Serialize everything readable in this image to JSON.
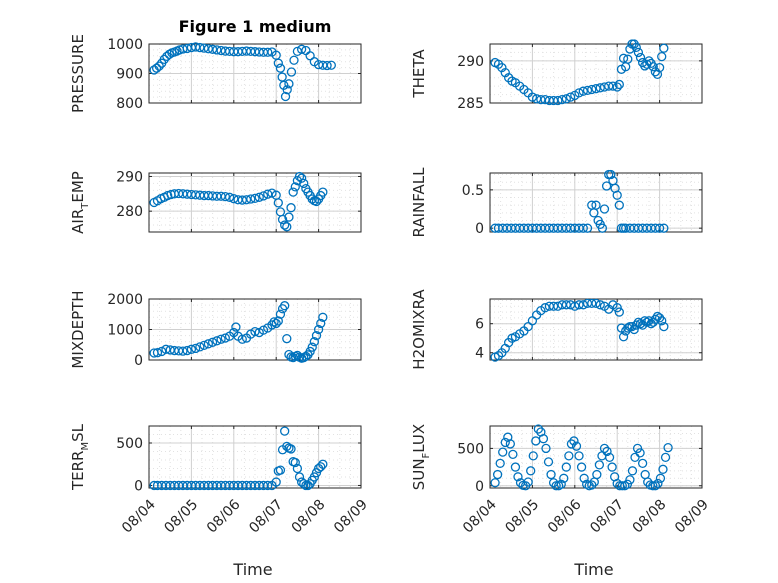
{
  "figure": {
    "title": "Figure 1 medium"
  },
  "colors": {
    "marker": "#0072BD",
    "axis": "#262626",
    "grid": "#d0d0d0",
    "minor_grid": "#e2e2e2"
  },
  "x_ticks": [
    "08/04",
    "08/05",
    "08/06",
    "08/07",
    "08/08",
    "08/09"
  ],
  "x_label": "Time",
  "chart_data": [
    {
      "type": "scatter",
      "title": "Figure 1 medium",
      "ylabel_main": "PRESSURE",
      "ylabel_sub": "",
      "ylabel_rest": "",
      "ylim": [
        800,
        1000
      ],
      "yticks": [
        800,
        900,
        1000
      ],
      "ytick_labels": [
        "800",
        "900",
        "1000"
      ],
      "xlim": [
        0,
        5
      ],
      "grid": true,
      "x": [
        0.12,
        0.18,
        0.24,
        0.3,
        0.36,
        0.42,
        0.48,
        0.54,
        0.6,
        0.66,
        0.72,
        0.8,
        0.9,
        1.0,
        1.1,
        1.2,
        1.3,
        1.4,
        1.5,
        1.6,
        1.7,
        1.8,
        1.9,
        2.0,
        2.1,
        2.2,
        2.3,
        2.4,
        2.5,
        2.6,
        2.7,
        2.8,
        2.9,
        3.0,
        3.05,
        3.1,
        3.14,
        3.18,
        3.22,
        3.26,
        3.3,
        3.36,
        3.42,
        3.5,
        3.6,
        3.7,
        3.8,
        3.9,
        4.0,
        4.1,
        4.2,
        4.3
      ],
      "y": [
        912,
        918,
        925,
        935,
        948,
        958,
        965,
        970,
        973,
        976,
        980,
        983,
        985,
        988,
        990,
        988,
        986,
        984,
        982,
        980,
        978,
        976,
        975,
        974,
        974,
        975,
        976,
        975,
        974,
        973,
        972,
        972,
        973,
        962,
        935,
        918,
        888,
        860,
        822,
        845,
        865,
        905,
        945,
        975,
        982,
        978,
        960,
        940,
        930,
        928,
        927,
        928
      ]
    },
    {
      "type": "scatter",
      "title": "",
      "ylabel_main": "THETA",
      "ylabel_sub": "",
      "ylabel_rest": "",
      "ylim": [
        285,
        292
      ],
      "yticks": [
        285,
        290
      ],
      "ytick_labels": [
        "285",
        "290"
      ],
      "xlim": [
        0,
        5
      ],
      "grid": true,
      "x": [
        0.12,
        0.2,
        0.28,
        0.36,
        0.44,
        0.52,
        0.6,
        0.7,
        0.8,
        0.9,
        1.0,
        1.1,
        1.2,
        1.3,
        1.4,
        1.5,
        1.6,
        1.7,
        1.8,
        1.9,
        2.0,
        2.1,
        2.2,
        2.3,
        2.4,
        2.5,
        2.6,
        2.7,
        2.8,
        2.9,
        3.0,
        3.05,
        3.1,
        3.15,
        3.2,
        3.25,
        3.3,
        3.35,
        3.4,
        3.45,
        3.5,
        3.55,
        3.6,
        3.65,
        3.7,
        3.75,
        3.8,
        3.85,
        3.9,
        3.95,
        4.0,
        4.05,
        4.1
      ],
      "y": [
        289.8,
        289.6,
        289.2,
        288.6,
        288.0,
        287.6,
        287.4,
        287.0,
        286.6,
        286.2,
        285.7,
        285.5,
        285.4,
        285.4,
        285.3,
        285.3,
        285.3,
        285.4,
        285.5,
        285.7,
        285.9,
        286.2,
        286.4,
        286.5,
        286.6,
        286.7,
        286.8,
        286.9,
        287.0,
        287.0,
        286.9,
        287.2,
        289.0,
        290.3,
        289.3,
        290.2,
        291.4,
        292.0,
        292.0,
        291.6,
        291.0,
        290.4,
        289.8,
        289.4,
        289.6,
        290.0,
        289.7,
        289.3,
        288.7,
        288.4,
        289.2,
        290.5,
        291.5
      ]
    },
    {
      "type": "scatter",
      "title": "",
      "ylabel_main": "AIR",
      "ylabel_sub": "T",
      "ylabel_rest": "EMP",
      "ylim": [
        274,
        291
      ],
      "yticks": [
        280,
        290
      ],
      "ytick_labels": [
        "280",
        "290"
      ],
      "xlim": [
        0,
        5
      ],
      "grid": true,
      "x": [
        0.12,
        0.2,
        0.28,
        0.36,
        0.44,
        0.52,
        0.6,
        0.7,
        0.8,
        0.9,
        1.0,
        1.1,
        1.2,
        1.3,
        1.4,
        1.5,
        1.6,
        1.7,
        1.8,
        1.9,
        2.0,
        2.1,
        2.2,
        2.3,
        2.4,
        2.5,
        2.6,
        2.7,
        2.8,
        2.9,
        3.0,
        3.05,
        3.1,
        3.15,
        3.2,
        3.25,
        3.3,
        3.35,
        3.4,
        3.45,
        3.5,
        3.55,
        3.6,
        3.65,
        3.7,
        3.75,
        3.8,
        3.85,
        3.9,
        3.95,
        4.0,
        4.05,
        4.1
      ],
      "y": [
        282.5,
        283.0,
        283.6,
        284.0,
        284.5,
        284.8,
        285.0,
        285.1,
        285.0,
        284.9,
        284.8,
        284.7,
        284.6,
        284.5,
        284.5,
        284.4,
        284.3,
        284.3,
        284.2,
        284.0,
        283.6,
        283.3,
        283.2,
        283.3,
        283.5,
        283.7,
        284.0,
        284.4,
        284.9,
        285.2,
        284.6,
        282.4,
        279.8,
        277.6,
        276.0,
        275.5,
        278.3,
        281.0,
        285.5,
        287.0,
        288.8,
        290.0,
        289.5,
        288.0,
        286.5,
        285.5,
        284.5,
        283.5,
        283.0,
        282.8,
        283.5,
        284.5,
        285.5
      ]
    },
    {
      "type": "scatter",
      "title": "",
      "ylabel_main": "RAINFALL",
      "ylabel_sub": "",
      "ylabel_rest": "",
      "ylim": [
        -0.05,
        0.72
      ],
      "yticks": [
        0,
        0.5
      ],
      "ytick_labels": [
        "0",
        "0.5"
      ],
      "xlim": [
        0,
        5
      ],
      "grid": true,
      "x": [
        0.12,
        0.2,
        0.3,
        0.4,
        0.5,
        0.6,
        0.7,
        0.8,
        0.9,
        1.0,
        1.1,
        1.2,
        1.3,
        1.4,
        1.5,
        1.6,
        1.7,
        1.8,
        1.9,
        2.0,
        2.1,
        2.2,
        2.3,
        2.4,
        2.45,
        2.5,
        2.55,
        2.6,
        2.65,
        2.7,
        2.75,
        2.8,
        2.85,
        2.9,
        2.95,
        3.0,
        3.05,
        3.1,
        3.15,
        3.2,
        3.3,
        3.4,
        3.5,
        3.6,
        3.7,
        3.8,
        3.9,
        4.0,
        4.1
      ],
      "y": [
        0,
        0,
        0,
        0,
        0,
        0,
        0,
        0,
        0,
        0,
        0,
        0,
        0,
        0,
        0,
        0,
        0,
        0,
        0,
        0,
        0,
        0,
        0,
        0.3,
        0.2,
        0.3,
        0.1,
        0.05,
        0,
        0.25,
        0.55,
        0.7,
        0.7,
        0.62,
        0.52,
        0.43,
        0.3,
        0,
        0,
        0,
        0,
        0,
        0,
        0,
        0,
        0,
        0,
        0,
        0
      ]
    },
    {
      "type": "scatter",
      "title": "",
      "ylabel_main": "MIXDEPTH",
      "ylabel_sub": "",
      "ylabel_rest": "",
      "ylim": [
        0,
        2000
      ],
      "yticks": [
        0,
        1000,
        2000
      ],
      "ytick_labels": [
        "0",
        "1000",
        "2000"
      ],
      "xlim": [
        0,
        5
      ],
      "grid": true,
      "x": [
        0.12,
        0.2,
        0.3,
        0.4,
        0.5,
        0.6,
        0.7,
        0.8,
        0.9,
        1.0,
        1.1,
        1.2,
        1.3,
        1.4,
        1.5,
        1.6,
        1.7,
        1.8,
        1.9,
        2.0,
        2.05,
        2.1,
        2.2,
        2.3,
        2.4,
        2.5,
        2.6,
        2.7,
        2.8,
        2.9,
        2.95,
        3.0,
        3.05,
        3.1,
        3.15,
        3.2,
        3.25,
        3.3,
        3.35,
        3.4,
        3.45,
        3.5,
        3.55,
        3.6,
        3.65,
        3.7,
        3.75,
        3.8,
        3.85,
        3.9,
        3.95,
        4.0,
        4.05,
        4.1
      ],
      "y": [
        230,
        240,
        280,
        350,
        330,
        310,
        300,
        290,
        310,
        350,
        380,
        430,
        480,
        530,
        580,
        630,
        680,
        720,
        780,
        900,
        1080,
        780,
        680,
        720,
        850,
        930,
        900,
        980,
        1050,
        1150,
        1250,
        1200,
        1280,
        1500,
        1680,
        1780,
        700,
        180,
        100,
        80,
        120,
        150,
        90,
        60,
        80,
        120,
        170,
        280,
        420,
        600,
        800,
        1000,
        1200,
        1400
      ]
    },
    {
      "type": "scatter",
      "title": "",
      "ylabel_main": "H2OMIXRA",
      "ylabel_sub": "",
      "ylabel_rest": "",
      "ylim": [
        3.5,
        7.7
      ],
      "yticks": [
        4,
        6
      ],
      "ytick_labels": [
        "4",
        "6"
      ],
      "xlim": [
        0,
        5
      ],
      "grid": true,
      "x": [
        0.12,
        0.2,
        0.28,
        0.36,
        0.44,
        0.52,
        0.6,
        0.7,
        0.8,
        0.9,
        1.0,
        1.1,
        1.2,
        1.3,
        1.4,
        1.5,
        1.6,
        1.7,
        1.8,
        1.9,
        2.0,
        2.1,
        2.2,
        2.3,
        2.4,
        2.5,
        2.6,
        2.7,
        2.8,
        2.9,
        3.0,
        3.05,
        3.1,
        3.15,
        3.2,
        3.25,
        3.3,
        3.35,
        3.4,
        3.45,
        3.5,
        3.55,
        3.6,
        3.65,
        3.7,
        3.75,
        3.8,
        3.85,
        3.9,
        3.95,
        4.0,
        4.05,
        4.1
      ],
      "y": [
        3.7,
        3.8,
        4.0,
        4.3,
        4.7,
        5.0,
        5.1,
        5.3,
        5.5,
        5.8,
        6.2,
        6.6,
        6.9,
        7.1,
        7.2,
        7.2,
        7.2,
        7.3,
        7.3,
        7.3,
        7.2,
        7.3,
        7.3,
        7.4,
        7.4,
        7.4,
        7.3,
        7.2,
        7.0,
        7.3,
        7.1,
        6.8,
        5.7,
        5.1,
        5.5,
        5.7,
        5.8,
        5.8,
        5.6,
        5.9,
        6.1,
        6.0,
        5.9,
        6.2,
        6.1,
        6.2,
        6.0,
        6.1,
        6.3,
        6.5,
        6.4,
        6.2,
        5.8
      ]
    },
    {
      "type": "scatter",
      "title": "",
      "ylabel_main": "TERR",
      "ylabel_sub": "M",
      "ylabel_rest": "SL",
      "ylim": [
        -30,
        700
      ],
      "yticks": [
        0,
        500
      ],
      "ytick_labels": [
        "0",
        "500"
      ],
      "xlim": [
        0,
        5
      ],
      "grid": true,
      "x": [
        0.12,
        0.2,
        0.3,
        0.4,
        0.5,
        0.6,
        0.7,
        0.8,
        0.9,
        1.0,
        1.1,
        1.2,
        1.3,
        1.4,
        1.5,
        1.6,
        1.7,
        1.8,
        1.9,
        2.0,
        2.1,
        2.2,
        2.3,
        2.4,
        2.5,
        2.6,
        2.7,
        2.8,
        2.9,
        3.0,
        3.05,
        3.1,
        3.15,
        3.2,
        3.25,
        3.3,
        3.35,
        3.4,
        3.45,
        3.5,
        3.55,
        3.6,
        3.65,
        3.7,
        3.75,
        3.8,
        3.85,
        3.9,
        3.95,
        4.0,
        4.05,
        4.1
      ],
      "y": [
        0,
        0,
        0,
        0,
        0,
        0,
        0,
        0,
        0,
        0,
        0,
        0,
        0,
        0,
        0,
        0,
        0,
        0,
        0,
        0,
        0,
        0,
        0,
        0,
        0,
        0,
        0,
        0,
        0,
        40,
        170,
        180,
        420,
        640,
        460,
        440,
        430,
        280,
        270,
        200,
        100,
        40,
        20,
        0,
        0,
        20,
        60,
        100,
        150,
        200,
        220,
        250
      ]
    },
    {
      "type": "scatter",
      "title": "",
      "ylabel_main": "SUN",
      "ylabel_sub": "F",
      "ylabel_rest": "LUX",
      "ylim": [
        -30,
        800
      ],
      "yticks": [
        0,
        500
      ],
      "ytick_labels": [
        "0",
        "500"
      ],
      "xlim": [
        0,
        5
      ],
      "grid": true,
      "x": [
        0.12,
        0.18,
        0.24,
        0.3,
        0.36,
        0.42,
        0.48,
        0.54,
        0.6,
        0.66,
        0.72,
        0.78,
        0.84,
        0.9,
        0.96,
        1.02,
        1.08,
        1.14,
        1.2,
        1.26,
        1.32,
        1.38,
        1.44,
        1.5,
        1.56,
        1.62,
        1.68,
        1.74,
        1.8,
        1.86,
        1.92,
        1.98,
        2.04,
        2.1,
        2.16,
        2.22,
        2.28,
        2.34,
        2.4,
        2.46,
        2.52,
        2.58,
        2.64,
        2.7,
        2.76,
        2.82,
        2.88,
        2.94,
        3.0,
        3.06,
        3.12,
        3.18,
        3.24,
        3.3,
        3.36,
        3.42,
        3.48,
        3.54,
        3.6,
        3.66,
        3.72,
        3.78,
        3.84,
        3.9,
        3.96,
        4.02,
        4.08,
        4.14,
        4.2
      ],
      "y": [
        40,
        150,
        300,
        450,
        580,
        650,
        560,
        420,
        250,
        120,
        40,
        5,
        0,
        50,
        200,
        400,
        600,
        760,
        720,
        630,
        500,
        320,
        150,
        40,
        0,
        0,
        20,
        100,
        250,
        400,
        560,
        600,
        530,
        400,
        250,
        100,
        20,
        0,
        10,
        50,
        150,
        280,
        400,
        500,
        460,
        380,
        250,
        120,
        30,
        0,
        0,
        0,
        20,
        80,
        200,
        380,
        500,
        440,
        300,
        150,
        50,
        10,
        0,
        0,
        30,
        100,
        220,
        380,
        510
      ]
    }
  ]
}
